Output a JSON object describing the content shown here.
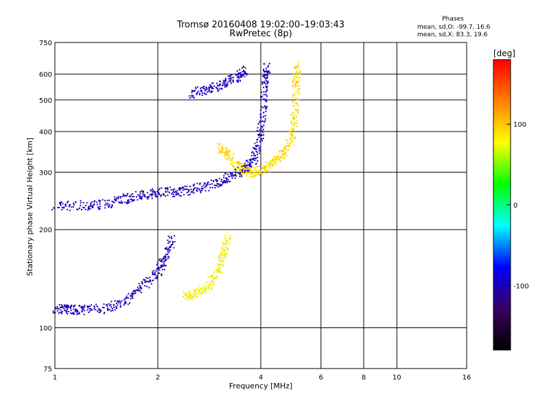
{
  "chart_data": {
    "type": "scatter",
    "title": "Tromsø 20160408 19:02:00–19:03:43",
    "subtitle": "RwPretec (8p)",
    "xlabel": "Frequency [MHz]",
    "ylabel": "Stationary phase Virtual Height [km]",
    "x_scale": "log",
    "y_scale": "log",
    "xlim": [
      1,
      16
    ],
    "ylim": [
      75,
      750
    ],
    "x_ticks": [
      1,
      2,
      4,
      6,
      8,
      10,
      16
    ],
    "y_ticks": [
      75,
      100,
      200,
      300,
      400,
      500,
      600,
      750
    ],
    "grid": true,
    "legend_position": "top-right",
    "stats": {
      "heading": "Phases",
      "line1": "mean, sd,O: -99.7, 16.6",
      "line2": "mean, sd,X:  83.3, 19.6"
    },
    "colorbar": {
      "label": "[deg]",
      "range": [
        -180,
        180
      ],
      "ticks": [
        100,
        0,
        -100
      ],
      "colors": [
        "#000000",
        "#3a0060",
        "#0000ff",
        "#00ffff",
        "#00ff00",
        "#ffff00",
        "#ff8000",
        "#ff0000"
      ]
    },
    "series": [
      {
        "role": "o-mode F-trace low",
        "phase": -100,
        "points": [
          [
            1.0,
            238
          ],
          [
            1.2,
            238
          ],
          [
            1.4,
            240
          ],
          [
            1.6,
            250
          ],
          [
            1.8,
            256
          ],
          [
            2.0,
            262
          ],
          [
            2.3,
            262
          ],
          [
            2.6,
            268
          ],
          [
            3.0,
            280
          ],
          [
            3.3,
            295
          ],
          [
            3.6,
            310
          ],
          [
            3.8,
            330
          ],
          [
            3.95,
            380
          ],
          [
            4.05,
            470
          ],
          [
            4.1,
            580
          ],
          [
            4.15,
            640
          ]
        ]
      },
      {
        "role": "o-mode E/F1 lower trace",
        "phase": -100,
        "points": [
          [
            1.0,
            115
          ],
          [
            1.1,
            114
          ],
          [
            1.2,
            114
          ],
          [
            1.4,
            115
          ],
          [
            1.6,
            122
          ],
          [
            1.8,
            135
          ],
          [
            2.0,
            150
          ],
          [
            2.1,
            165
          ],
          [
            2.2,
            190
          ]
        ]
      },
      {
        "role": "o-mode cusp upper branch",
        "phase": -100,
        "points": [
          [
            2.5,
            525
          ],
          [
            2.8,
            540
          ],
          [
            3.1,
            560
          ],
          [
            3.4,
            590
          ],
          [
            3.6,
            620
          ]
        ]
      },
      {
        "role": "x-mode F-trace",
        "phase": 90,
        "points": [
          [
            3.0,
            360
          ],
          [
            3.2,
            340
          ],
          [
            3.4,
            315
          ],
          [
            3.7,
            300
          ],
          [
            4.0,
            305
          ],
          [
            4.3,
            320
          ],
          [
            4.6,
            340
          ],
          [
            4.9,
            380
          ],
          [
            5.0,
            450
          ],
          [
            5.05,
            560
          ],
          [
            5.1,
            640
          ]
        ]
      },
      {
        "role": "x-mode lower trace",
        "phase": 80,
        "points": [
          [
            2.4,
            125
          ],
          [
            2.6,
            128
          ],
          [
            2.8,
            135
          ],
          [
            3.0,
            150
          ],
          [
            3.1,
            170
          ],
          [
            3.2,
            195
          ]
        ]
      }
    ]
  }
}
